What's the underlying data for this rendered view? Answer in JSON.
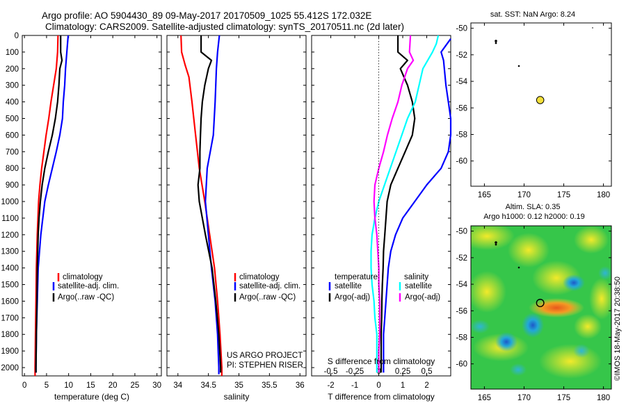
{
  "header": {
    "line1": "Argo profile: AO 5904430_89 09-May-2017 20170509_1025 55.412S 172.032E",
    "line2": "Climatology: CARS2009. Satellite-adjusted climatology: synTS_20170511.nc (2d later)"
  },
  "colors": {
    "climatology": "#ff0000",
    "satellite": "#0000ff",
    "argo": "#000000",
    "sat_salinity": "#00ffff",
    "argo_salinity": "#ff00ff"
  },
  "depth_ticks": [
    "0",
    "100",
    "200",
    "300",
    "400",
    "500",
    "600",
    "700",
    "800",
    "900",
    "1000",
    "1100",
    "1200",
    "1300",
    "1400",
    "1500",
    "1600",
    "1700",
    "1800",
    "1900",
    "2000"
  ],
  "legend_temp": [
    "climatology",
    "satellite-adj. clim.",
    "Argo(..raw -QC)"
  ],
  "legend_sal": [
    "climatology",
    "satellite-adj. clim.",
    "Argo(..raw -QC)"
  ],
  "legend_diff": {
    "temp_title": "temperature",
    "sal_title": "salinity",
    "temp_items": [
      "satellite",
      "Argo(-adj)"
    ],
    "sal_items": [
      "satellite",
      "Argo(-adj)"
    ]
  },
  "project_note": [
    "US ARGO PROJECT",
    "PI: STEPHEN RISER"
  ],
  "maps": {
    "top_title": "sat. SST: NaN Argo: 8.24",
    "bottom_title1": "Altim. SLA: 0.35",
    "bottom_title2": "Argo h1000: 0.12 h2000: 0.19",
    "y_ticks": [
      "-50",
      "-52",
      "-54",
      "-56",
      "-58",
      "-60"
    ],
    "x_ticks": [
      "165",
      "170",
      "175",
      "180"
    ],
    "float_position": {
      "lon": 172.032,
      "lat": -55.412
    },
    "marker_color": "#f5e03a"
  },
  "credit": "©IMOS 18-May-2017 20:38:50",
  "chart_data": [
    {
      "type": "line",
      "xlabel": "temperature (deg C)",
      "ylabel": "",
      "xlim": [
        -0.5,
        31
      ],
      "ylim": [
        2050,
        0
      ],
      "x_ticks": [
        "0",
        "5",
        "10",
        "15",
        "20",
        "25",
        "30"
      ],
      "series": [
        {
          "name": "climatology",
          "depth": [
            0,
            100,
            200,
            300,
            400,
            500,
            600,
            700,
            800,
            900,
            1000,
            1200,
            1400,
            1600,
            1800,
            2000,
            2050
          ],
          "values": [
            7.6,
            7.5,
            7.2,
            6.6,
            6.0,
            5.5,
            4.9,
            4.4,
            3.9,
            3.5,
            3.2,
            2.9,
            2.7,
            2.6,
            2.5,
            2.4,
            2.4
          ]
        },
        {
          "name": "satellite-adj. clim.",
          "depth": [
            0,
            100,
            200,
            300,
            400,
            500,
            600,
            700,
            800,
            900,
            1000,
            1200,
            1400,
            1600,
            1800,
            2000,
            2030
          ],
          "values": [
            9.9,
            9.6,
            9.3,
            9.1,
            8.8,
            8.6,
            8.0,
            7.2,
            6.3,
            5.4,
            4.6,
            3.7,
            3.1,
            2.9,
            2.7,
            2.6,
            2.6
          ]
        },
        {
          "name": "Argo(..raw -QC)",
          "depth": [
            0,
            100,
            150,
            200,
            300,
            400,
            500,
            600,
            700,
            800,
            900,
            1000,
            1100,
            1200,
            1400,
            1600,
            1800,
            2000,
            2030
          ],
          "values": [
            8.2,
            8.2,
            8.5,
            8.0,
            7.8,
            7.5,
            7.0,
            6.3,
            5.4,
            4.6,
            4.0,
            3.6,
            3.3,
            3.1,
            2.9,
            2.8,
            2.7,
            2.6,
            2.6
          ]
        }
      ]
    },
    {
      "type": "line",
      "xlabel": "salinity",
      "ylabel": "",
      "xlim": [
        33.82,
        36.1
      ],
      "ylim": [
        2050,
        0
      ],
      "x_ticks": [
        "34",
        "34.5",
        "35",
        "35.5",
        "36"
      ],
      "series": [
        {
          "name": "climatology",
          "depth": [
            0,
            100,
            180,
            250,
            400,
            600,
            800,
            1000,
            1200,
            1400,
            1600,
            1800,
            2000,
            2050
          ],
          "values": [
            34.05,
            34.06,
            34.12,
            34.18,
            34.23,
            34.29,
            34.35,
            34.44,
            34.52,
            34.6,
            34.65,
            34.69,
            34.72,
            34.72
          ]
        },
        {
          "name": "satellite-adj. clim.",
          "depth": [
            0,
            100,
            200,
            400,
            600,
            800,
            1000,
            1200,
            1400,
            1600,
            1800,
            2000,
            2040
          ],
          "values": [
            34.68,
            34.65,
            34.63,
            34.61,
            34.58,
            34.48,
            34.45,
            34.5,
            34.55,
            34.61,
            34.65,
            34.67,
            34.67
          ]
        },
        {
          "name": "Argo(..raw -QC)",
          "depth": [
            0,
            100,
            150,
            200,
            300,
            400,
            500,
            600,
            700,
            800,
            900,
            1000,
            1200,
            1400,
            1600,
            1800,
            2000,
            2030
          ],
          "values": [
            34.38,
            34.38,
            34.55,
            34.5,
            34.44,
            34.4,
            34.38,
            34.37,
            34.36,
            34.36,
            34.33,
            34.35,
            34.45,
            34.56,
            34.62,
            34.67,
            34.7,
            34.7
          ]
        }
      ]
    },
    {
      "type": "line",
      "xlabel": "T difference from climatology",
      "xlabel2": "S difference from climatology",
      "ylabel": "",
      "xlim": [
        -2.8,
        3.0
      ],
      "x2lim": [
        -0.7,
        0.75
      ],
      "ylim": [
        2050,
        0
      ],
      "x_ticks": [
        "-2",
        "-1",
        "0",
        "1",
        "2"
      ],
      "x2_ticks": [
        "-0.5",
        "-0.25",
        "0",
        "0.25",
        "0.5"
      ],
      "series": [
        {
          "name": "satellite",
          "quantity": "temperature",
          "depth": [
            20,
            100,
            150,
            300,
            400,
            500,
            600,
            700,
            800,
            900,
            1000,
            1100,
            1200,
            1300,
            1400,
            1500,
            1600,
            1700,
            1800,
            1900,
            2000,
            2030
          ],
          "values": [
            3.0,
            2.6,
            2.7,
            2.8,
            2.9,
            3.0,
            3.0,
            2.9,
            2.6,
            2.0,
            1.5,
            1.0,
            0.7,
            0.5,
            0.4,
            0.35,
            0.3,
            0.25,
            0.2,
            0.2,
            0.2,
            0.2
          ]
        },
        {
          "name": "Argo(-adj)",
          "quantity": "temperature",
          "depth": [
            0,
            100,
            150,
            200,
            300,
            400,
            500,
            600,
            700,
            800,
            900,
            1000,
            1100,
            1200,
            1300,
            1400,
            1500,
            1600,
            1700,
            1800,
            1900,
            2000,
            2030
          ],
          "values": [
            0.8,
            0.8,
            1.2,
            0.9,
            1.2,
            1.4,
            1.5,
            1.4,
            1.1,
            0.8,
            0.5,
            0.35,
            0.3,
            0.25,
            0.2,
            0.18,
            0.15,
            0.13,
            0.12,
            0.1,
            0.1,
            0.1,
            0.1
          ]
        },
        {
          "name": "satellite",
          "quantity": "salinity",
          "depth": [
            0,
            50,
            100,
            200,
            300,
            400,
            500,
            600,
            700,
            800,
            900,
            1000,
            1100,
            1200,
            1300,
            1400,
            1500,
            1600,
            1700,
            1800,
            1900,
            2000,
            2030
          ],
          "values": [
            0.62,
            0.6,
            0.56,
            0.46,
            0.42,
            0.38,
            0.3,
            0.24,
            0.18,
            0.12,
            0.06,
            0.0,
            -0.04,
            -0.07,
            -0.08,
            -0.08,
            -0.07,
            -0.05,
            -0.04,
            -0.02,
            -0.02,
            -0.02,
            -0.02
          ]
        },
        {
          "name": "Argo(-adj)",
          "quantity": "salinity",
          "depth": [
            0,
            100,
            150,
            200,
            300,
            400,
            500,
            600,
            700,
            800,
            900,
            1000,
            1100,
            1200,
            1300,
            1400,
            1500,
            1600,
            1700,
            1800,
            1900,
            2000,
            2030
          ],
          "values": [
            0.33,
            0.32,
            0.36,
            0.3,
            0.24,
            0.2,
            0.14,
            0.09,
            0.05,
            0.0,
            -0.04,
            -0.05,
            -0.04,
            -0.02,
            -0.01,
            0.0,
            0.0,
            0.01,
            0.01,
            0.01,
            0.0,
            0.0,
            0.0
          ]
        }
      ]
    }
  ]
}
